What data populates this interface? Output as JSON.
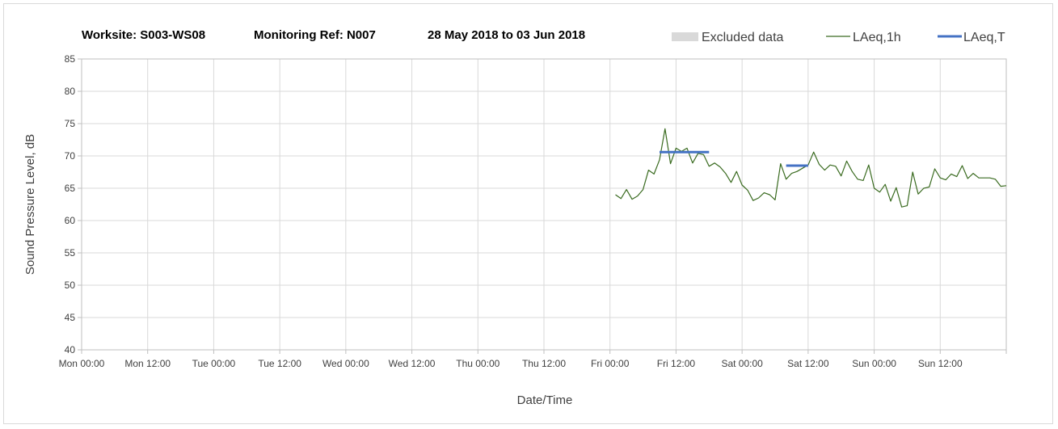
{
  "chart_data": {
    "type": "line",
    "title": {
      "worksite": "Worksite: S003-WS08",
      "monitoring_ref": "Monitoring Ref: N007",
      "period": "28 May 2018 to 03 Jun 2018"
    },
    "xlabel": "Date/Time",
    "ylabel": "Sound Pressure Level, dB",
    "ylim": [
      40,
      85
    ],
    "yticks": [
      40,
      45,
      50,
      55,
      60,
      65,
      70,
      75,
      80,
      85
    ],
    "xlim_hours": [
      0,
      168
    ],
    "xticks": [
      {
        "label": "Mon 00:00",
        "hour": 0
      },
      {
        "label": "Mon 12:00",
        "hour": 12
      },
      {
        "label": "Tue 00:00",
        "hour": 24
      },
      {
        "label": "Tue 12:00",
        "hour": 36
      },
      {
        "label": "Wed 00:00",
        "hour": 48
      },
      {
        "label": "Wed 12:00",
        "hour": 60
      },
      {
        "label": "Thu 00:00",
        "hour": 72
      },
      {
        "label": "Thu 12:00",
        "hour": 84
      },
      {
        "label": "Fri 00:00",
        "hour": 96
      },
      {
        "label": "Fri 12:00",
        "hour": 108
      },
      {
        "label": "Sat 00:00",
        "hour": 120
      },
      {
        "label": "Sat 12:00",
        "hour": 132
      },
      {
        "label": "Sun 00:00",
        "hour": 144
      },
      {
        "label": "Sun 12:00",
        "hour": 156
      }
    ],
    "grid": true,
    "legend": {
      "placement": "top-right",
      "items": [
        {
          "name": "Excluded data",
          "color": "#d9d9d9",
          "kind": "box"
        },
        {
          "name": "LAeq,1h",
          "color": "#3a6b20",
          "kind": "line"
        },
        {
          "name": "LAeq,T",
          "color": "#4472c4",
          "kind": "line"
        }
      ]
    },
    "series": [
      {
        "name": "LAeq,1h",
        "color": "#3a6b20",
        "start_hour": 97,
        "step_hours": 1,
        "values": [
          64.0,
          63.4,
          64.8,
          63.3,
          63.8,
          64.8,
          67.8,
          67.2,
          69.4,
          74.2,
          68.8,
          71.2,
          70.7,
          71.2,
          68.9,
          70.4,
          70.2,
          68.4,
          68.9,
          68.3,
          67.3,
          65.9,
          67.6,
          65.5,
          64.7,
          63.1,
          63.5,
          64.3,
          64.0,
          63.2,
          68.8,
          66.4,
          67.3,
          67.6,
          68.1,
          68.6,
          70.6,
          68.7,
          67.8,
          68.6,
          68.4,
          66.9,
          69.2,
          67.6,
          66.4,
          66.2,
          68.6,
          65.0,
          64.4,
          65.6,
          63.0,
          65.1,
          62.1,
          62.3,
          67.5,
          64.1,
          65.0,
          65.2,
          68.0,
          66.6,
          66.3,
          67.2,
          66.8,
          68.5,
          66.5,
          67.3,
          66.6,
          66.6,
          66.6,
          66.4,
          65.3,
          65.4
        ]
      },
      {
        "name": "LAeq,T",
        "color": "#4472c4",
        "segments": [
          {
            "start_hour": 105,
            "end_hour": 114,
            "value": 70.6
          },
          {
            "start_hour": 128,
            "end_hour": 132,
            "value": 68.5
          }
        ]
      }
    ]
  }
}
